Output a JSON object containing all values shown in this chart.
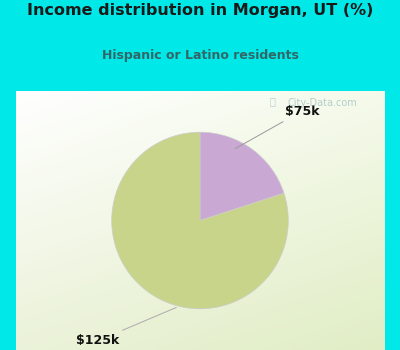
{
  "title": "Income distribution in Morgan, UT (%)",
  "subtitle": "Hispanic or Latino residents",
  "title_color": "#1a1a1a",
  "subtitle_color": "#336666",
  "bg_color": "#00e8e8",
  "chart_bg_left": "#e8f5e8",
  "chart_bg_right": "#d8ecd8",
  "slices": [
    {
      "label": "$75k",
      "value": 20,
      "color": "#c9a8d4"
    },
    {
      "label": "$125k",
      "value": 80,
      "color": "#c8d48a"
    }
  ],
  "watermark": "City-Data.com",
  "watermark_color": "#a0bfbf"
}
